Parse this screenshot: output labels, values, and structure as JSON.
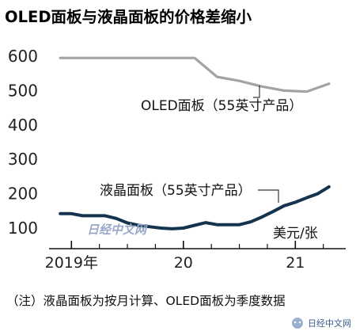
{
  "chart_data": {
    "type": "line",
    "title": "OLED面板与液晶面板的价格差缩小",
    "unit": "美元/张",
    "note": "（注）液晶面板为按月计算、OLED面板为季度数据",
    "ylim": [
      100,
      650
    ],
    "yticks": [
      "600",
      "500",
      "400",
      "300",
      "200",
      "100"
    ],
    "ytick_values": [
      600,
      500,
      400,
      300,
      200,
      100
    ],
    "xticks": [
      {
        "label": "2019年",
        "value": 2019.0
      },
      {
        "label": "20",
        "value": 2020.0
      },
      {
        "label": "21",
        "value": 2021.0
      }
    ],
    "xlim": [
      2018.8,
      2021.45
    ],
    "grid": false,
    "series": [
      {
        "name": "OLED面板（55英寸产品）",
        "color": "#a3a3a3",
        "x": [
          2018.9,
          2019.1,
          2019.3,
          2019.5,
          2019.7,
          2019.9,
          2020.1,
          2020.3,
          2020.5,
          2020.7,
          2020.9,
          2021.1,
          2021.3
        ],
        "y": [
          595,
          595,
          595,
          595,
          595,
          595,
          595,
          540,
          528,
          512,
          500,
          497,
          520
        ]
      },
      {
        "name": "液晶面板（55英寸产品）",
        "color": "#13334f",
        "x": [
          2018.9,
          2019.0,
          2019.1,
          2019.2,
          2019.3,
          2019.4,
          2019.5,
          2019.6,
          2019.7,
          2019.8,
          2019.9,
          2020.0,
          2020.1,
          2020.2,
          2020.3,
          2020.4,
          2020.5,
          2020.6,
          2020.7,
          2020.8,
          2020.9,
          2021.0,
          2021.1,
          2021.2,
          2021.3
        ],
        "y": [
          142,
          142,
          136,
          136,
          136,
          128,
          115,
          108,
          104,
          100,
          98,
          100,
          108,
          116,
          110,
          110,
          110,
          118,
          132,
          148,
          165,
          175,
          188,
          200,
          220
        ]
      }
    ]
  },
  "watermark": {
    "text": "日经中文网",
    "badge_text": "日经中文网"
  }
}
